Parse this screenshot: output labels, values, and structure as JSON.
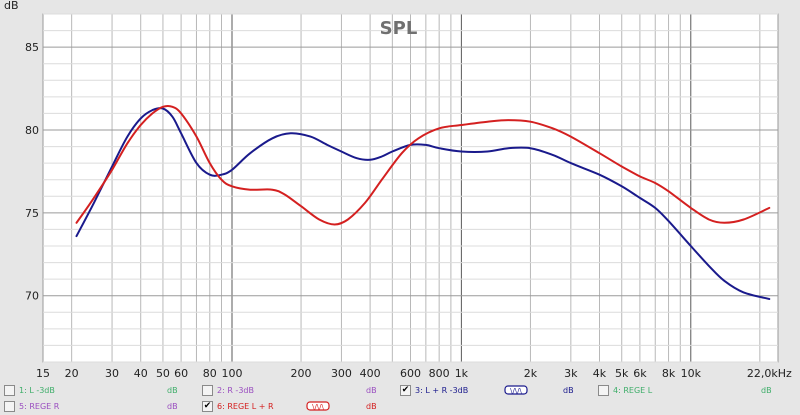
{
  "chart_data": {
    "type": "line",
    "title": "SPL",
    "ylabel": "dB",
    "x_scale": "log",
    "xlim": [
      15,
      24000
    ],
    "ylim": [
      66,
      87
    ],
    "y_ticks": [
      70,
      75,
      80,
      85
    ],
    "x_tick_labels": [
      {
        "f": 15,
        "label": "15"
      },
      {
        "f": 20,
        "label": "20"
      },
      {
        "f": 30,
        "label": "30"
      },
      {
        "f": 40,
        "label": "40"
      },
      {
        "f": 50,
        "label": "50"
      },
      {
        "f": 60,
        "label": "60"
      },
      {
        "f": 80,
        "label": "80"
      },
      {
        "f": 100,
        "label": "100"
      },
      {
        "f": 200,
        "label": "200"
      },
      {
        "f": 300,
        "label": "300"
      },
      {
        "f": 400,
        "label": "400"
      },
      {
        "f": 600,
        "label": "600"
      },
      {
        "f": 800,
        "label": "800"
      },
      {
        "f": 1000,
        "label": "1k"
      },
      {
        "f": 2000,
        "label": "2k"
      },
      {
        "f": 3000,
        "label": "3k"
      },
      {
        "f": 4000,
        "label": "4k"
      },
      {
        "f": 5000,
        "label": "5k"
      },
      {
        "f": 6000,
        "label": "6k"
      },
      {
        "f": 8000,
        "label": "8k"
      },
      {
        "f": 10000,
        "label": "10k"
      },
      {
        "f": 22000,
        "label": "22,0kHz"
      }
    ],
    "grid": true,
    "series": [
      {
        "name": "3: L + R -3dB",
        "color": "#1a1a8c",
        "points": [
          [
            21,
            73.6
          ],
          [
            25,
            75.6
          ],
          [
            30,
            77.8
          ],
          [
            35,
            79.6
          ],
          [
            40,
            80.7
          ],
          [
            45,
            81.2
          ],
          [
            50,
            81.3
          ],
          [
            55,
            80.8
          ],
          [
            60,
            79.8
          ],
          [
            70,
            78.0
          ],
          [
            80,
            77.3
          ],
          [
            90,
            77.3
          ],
          [
            100,
            77.6
          ],
          [
            120,
            78.6
          ],
          [
            150,
            79.5
          ],
          [
            180,
            79.8
          ],
          [
            220,
            79.6
          ],
          [
            260,
            79.1
          ],
          [
            300,
            78.7
          ],
          [
            350,
            78.3
          ],
          [
            400,
            78.2
          ],
          [
            450,
            78.4
          ],
          [
            500,
            78.7
          ],
          [
            600,
            79.1
          ],
          [
            700,
            79.1
          ],
          [
            800,
            78.9
          ],
          [
            1000,
            78.7
          ],
          [
            1300,
            78.7
          ],
          [
            1600,
            78.9
          ],
          [
            2000,
            78.9
          ],
          [
            2500,
            78.5
          ],
          [
            3000,
            78.0
          ],
          [
            4000,
            77.3
          ],
          [
            5000,
            76.6
          ],
          [
            6000,
            75.9
          ],
          [
            7000,
            75.3
          ],
          [
            8000,
            74.5
          ],
          [
            10000,
            73.0
          ],
          [
            12000,
            71.8
          ],
          [
            14000,
            70.9
          ],
          [
            17000,
            70.2
          ],
          [
            22000,
            69.8
          ]
        ]
      },
      {
        "name": "6: REGE L + R",
        "color": "#d42020",
        "points": [
          [
            21,
            74.4
          ],
          [
            25,
            75.9
          ],
          [
            30,
            77.6
          ],
          [
            35,
            79.2
          ],
          [
            40,
            80.3
          ],
          [
            45,
            81.0
          ],
          [
            50,
            81.4
          ],
          [
            55,
            81.4
          ],
          [
            60,
            81.0
          ],
          [
            70,
            79.6
          ],
          [
            80,
            78.0
          ],
          [
            90,
            77.0
          ],
          [
            100,
            76.6
          ],
          [
            120,
            76.4
          ],
          [
            150,
            76.4
          ],
          [
            170,
            76.1
          ],
          [
            200,
            75.4
          ],
          [
            240,
            74.6
          ],
          [
            280,
            74.3
          ],
          [
            320,
            74.6
          ],
          [
            380,
            75.6
          ],
          [
            450,
            77.0
          ],
          [
            550,
            78.6
          ],
          [
            650,
            79.5
          ],
          [
            800,
            80.1
          ],
          [
            1000,
            80.3
          ],
          [
            1300,
            80.5
          ],
          [
            1600,
            80.6
          ],
          [
            2000,
            80.5
          ],
          [
            2500,
            80.1
          ],
          [
            3000,
            79.6
          ],
          [
            4000,
            78.6
          ],
          [
            5000,
            77.8
          ],
          [
            6000,
            77.2
          ],
          [
            7000,
            76.8
          ],
          [
            8000,
            76.3
          ],
          [
            10000,
            75.3
          ],
          [
            12000,
            74.6
          ],
          [
            14000,
            74.4
          ],
          [
            17000,
            74.6
          ],
          [
            22000,
            75.3
          ]
        ]
      }
    ]
  },
  "legend": {
    "row1": [
      {
        "label": "1: L -3dB",
        "unit": "dB",
        "checked": false,
        "label_color": "#3fae6a",
        "unit_color": "#3fae6a"
      },
      {
        "label": "2: R -3dB",
        "unit": "dB",
        "checked": false,
        "label_color": "#9a4ec0",
        "unit_color": "#9a4ec0"
      },
      {
        "label": "3: L + R -3dB",
        "unit": "dB",
        "checked": true,
        "label_color": "#1a1a8c",
        "unit_color": "#1a1a8c",
        "swatch_color": "#1a1a8c",
        "swatch_text": "\\/\\/\\"
      },
      {
        "label": "4: REGE L",
        "unit": "dB",
        "checked": false,
        "label_color": "#3fae6a",
        "unit_color": "#3fae6a"
      }
    ],
    "row2": [
      {
        "label": "5: REGE R",
        "unit": "dB",
        "checked": false,
        "label_color": "#9a4ec0",
        "unit_color": "#9a4ec0"
      },
      {
        "label": "6: REGE L + R",
        "unit": "dB",
        "checked": true,
        "label_color": "#d42020",
        "unit_color": "#d42020",
        "swatch_color": "#d42020",
        "swatch_text": "\\/\\/\\"
      }
    ]
  }
}
